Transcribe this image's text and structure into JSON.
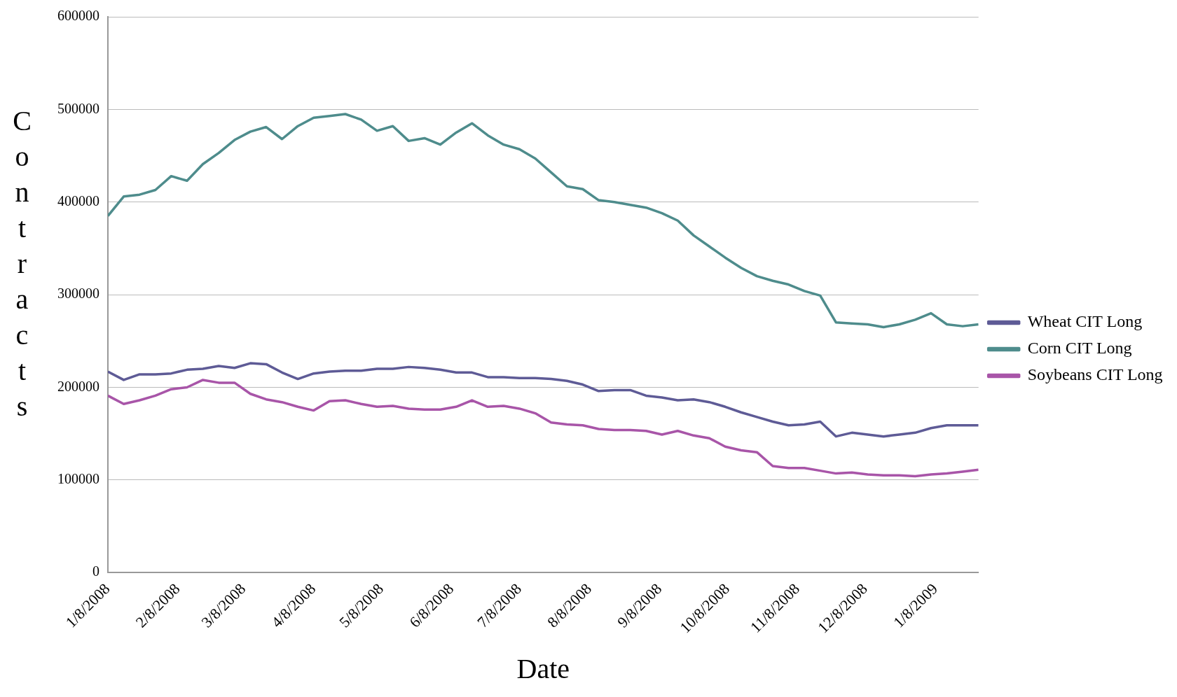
{
  "chart_data": {
    "type": "line",
    "xlabel": "Date",
    "ylabel": "Contracts",
    "x": [
      "2008-01-08",
      "2008-01-15",
      "2008-01-22",
      "2008-01-29",
      "2008-02-05",
      "2008-02-12",
      "2008-02-19",
      "2008-02-26",
      "2008-03-04",
      "2008-03-11",
      "2008-03-18",
      "2008-03-25",
      "2008-04-01",
      "2008-04-08",
      "2008-04-15",
      "2008-04-22",
      "2008-04-29",
      "2008-05-06",
      "2008-05-13",
      "2008-05-20",
      "2008-05-27",
      "2008-06-03",
      "2008-06-10",
      "2008-06-17",
      "2008-06-24",
      "2008-07-01",
      "2008-07-08",
      "2008-07-15",
      "2008-07-22",
      "2008-07-29",
      "2008-08-05",
      "2008-08-12",
      "2008-08-19",
      "2008-08-26",
      "2008-09-02",
      "2008-09-09",
      "2008-09-16",
      "2008-09-23",
      "2008-09-30",
      "2008-10-07",
      "2008-10-14",
      "2008-10-21",
      "2008-10-28",
      "2008-11-04",
      "2008-11-11",
      "2008-11-18",
      "2008-11-25",
      "2008-12-02",
      "2008-12-09",
      "2008-12-16",
      "2008-12-23",
      "2008-12-30",
      "2009-01-06",
      "2009-01-13",
      "2009-01-20",
      "2009-01-27"
    ],
    "series": [
      {
        "name": "Wheat CIT Long",
        "color": "#5e5b96",
        "values": [
          217000,
          208000,
          214000,
          214000,
          215000,
          219000,
          220000,
          223000,
          221000,
          226000,
          225000,
          216000,
          209000,
          215000,
          217000,
          218000,
          218000,
          220000,
          220000,
          222000,
          221000,
          219000,
          216000,
          216000,
          211000,
          211000,
          210000,
          210000,
          209000,
          207000,
          203000,
          196000,
          197000,
          197000,
          191000,
          189000,
          186000,
          187000,
          184000,
          179000,
          173000,
          168000,
          163000,
          159000,
          160000,
          163000,
          147000,
          151000,
          149000,
          147000,
          149000,
          151000,
          156000,
          159000,
          159000,
          159000
        ]
      },
      {
        "name": "Corn CIT Long",
        "color": "#4e8c8c",
        "values": [
          385000,
          406000,
          408000,
          413000,
          428000,
          423000,
          441000,
          453000,
          467000,
          476000,
          481000,
          468000,
          482000,
          491000,
          493000,
          495000,
          489000,
          477000,
          482000,
          466000,
          469000,
          462000,
          475000,
          485000,
          472000,
          462000,
          457000,
          447000,
          432000,
          417000,
          414000,
          402000,
          400000,
          397000,
          394000,
          388000,
          380000,
          364000,
          352000,
          340000,
          329000,
          320000,
          315000,
          311000,
          304000,
          299000,
          270000,
          269000,
          268000,
          265000,
          268000,
          273000,
          280000,
          268000,
          266000,
          268000
        ]
      },
      {
        "name": "Soybeans CIT Long",
        "color": "#a855a8",
        "values": [
          191000,
          182000,
          186000,
          191000,
          198000,
          200000,
          208000,
          205000,
          205000,
          193000,
          187000,
          184000,
          179000,
          175000,
          185000,
          186000,
          182000,
          179000,
          180000,
          177000,
          176000,
          176000,
          179000,
          186000,
          179000,
          180000,
          177000,
          172000,
          162000,
          160000,
          159000,
          155000,
          154000,
          154000,
          153000,
          149000,
          153000,
          148000,
          145000,
          136000,
          132000,
          130000,
          115000,
          113000,
          113000,
          110000,
          107000,
          108000,
          106000,
          105000,
          105000,
          104000,
          106000,
          107000,
          109000,
          111000
        ]
      }
    ],
    "xlim": [
      "2008-01-08",
      "2009-01-27"
    ],
    "xticks": [
      {
        "value": "2008-01-08",
        "label": "1/8/2008"
      },
      {
        "value": "2008-02-08",
        "label": "2/8/2008"
      },
      {
        "value": "2008-03-08",
        "label": "3/8/2008"
      },
      {
        "value": "2008-04-08",
        "label": "4/8/2008"
      },
      {
        "value": "2008-05-08",
        "label": "5/8/2008"
      },
      {
        "value": "2008-06-08",
        "label": "6/8/2008"
      },
      {
        "value": "2008-07-08",
        "label": "7/8/2008"
      },
      {
        "value": "2008-08-08",
        "label": "8/8/2008"
      },
      {
        "value": "2008-09-08",
        "label": "9/8/2008"
      },
      {
        "value": "2008-10-08",
        "label": "10/8/2008"
      },
      {
        "value": "2008-11-08",
        "label": "11/8/2008"
      },
      {
        "value": "2008-12-08",
        "label": "12/8/2008"
      },
      {
        "value": "2009-01-08",
        "label": "1/8/2009"
      }
    ],
    "ylim": [
      0,
      600000
    ],
    "yticks": [
      0,
      100000,
      200000,
      300000,
      400000,
      500000,
      600000
    ],
    "grid": "y",
    "legend": "right",
    "marker": "none",
    "line_style": "solid"
  }
}
